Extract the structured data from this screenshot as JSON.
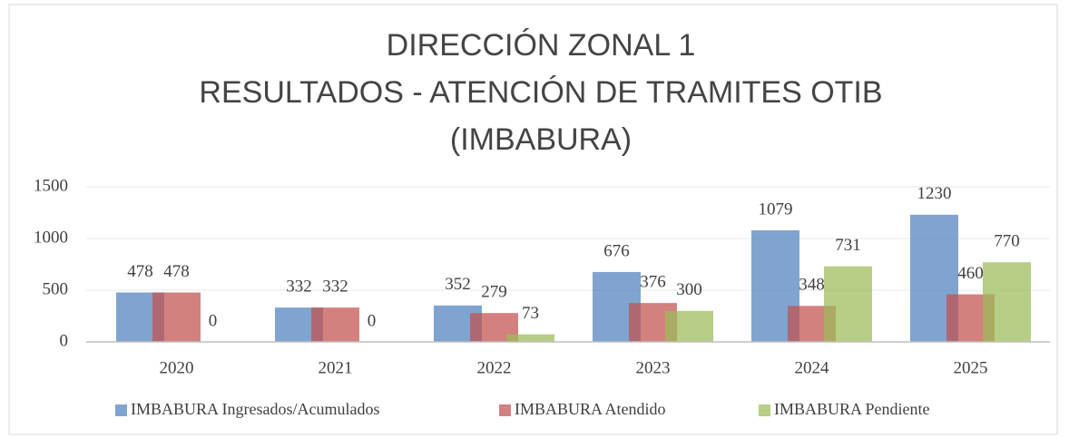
{
  "chart_data": {
    "type": "bar",
    "title": [
      "DIRECCIÓN ZONAL 1",
      "RESULTADOS - ATENCIÓN DE TRAMITES OTIB",
      "(IMBABURA)"
    ],
    "categories": [
      "2020",
      "2021",
      "2022",
      "2023",
      "2024",
      "2025"
    ],
    "series": [
      {
        "name": "IMBABURA Ingresados/Acumulados",
        "color": "#4f81bd",
        "values": [
          478,
          332,
          352,
          676,
          1079,
          1230
        ]
      },
      {
        "name": "IMBABURA Atendido",
        "color": "#c0504d",
        "values": [
          478,
          332,
          279,
          376,
          348,
          460
        ]
      },
      {
        "name": "IMBABURA Pendiente",
        "color": "#9bbb59",
        "values": [
          0,
          0,
          73,
          300,
          731,
          770
        ]
      }
    ],
    "ylim": [
      0,
      1500
    ],
    "yticks": [
      0,
      500,
      1000,
      1500
    ],
    "grid": true,
    "legend": "bottom"
  }
}
